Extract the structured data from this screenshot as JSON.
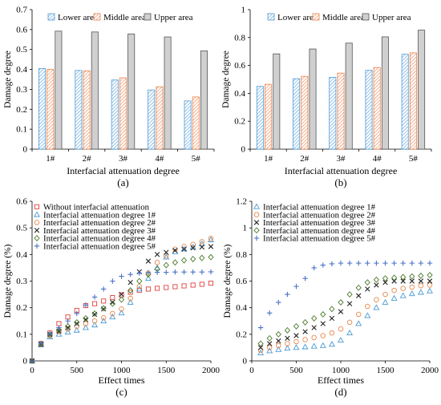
{
  "chart_data": [
    {
      "panel_label": "(a)",
      "type": "bar",
      "xlabel": "Interfacial attenuation degree",
      "ylabel": "Damage degree",
      "categories": [
        "1#",
        "2#",
        "3#",
        "4#",
        "5#"
      ],
      "ylim": [
        0,
        0.7
      ],
      "yticks": [
        "0",
        "0.1",
        "0.2",
        "0.3",
        "0.4",
        "0.5",
        "0.6",
        "0.7"
      ],
      "legend_position": "top",
      "grid": false,
      "series": [
        {
          "name": "Lower area",
          "color": "#4f9ad6",
          "pattern": "hatch-blue",
          "values": [
            0.405,
            0.395,
            0.347,
            0.297,
            0.242
          ]
        },
        {
          "name": "Middle area",
          "color": "#e8804a",
          "pattern": "hatch-orange",
          "values": [
            0.4,
            0.393,
            0.358,
            0.313,
            0.262
          ]
        },
        {
          "name": "Upper area",
          "color": "#555555",
          "pattern": "fill-gray",
          "values": [
            0.592,
            0.588,
            0.578,
            0.563,
            0.493
          ]
        }
      ]
    },
    {
      "panel_label": "(b)",
      "type": "bar",
      "xlabel": "Interfacial attenuation degree",
      "ylabel": "Damage degree",
      "categories": [
        "1#",
        "2#",
        "3#",
        "4#",
        "5#"
      ],
      "ylim": [
        0,
        1
      ],
      "yticks": [
        "0",
        "0.2",
        "0.4",
        "0.6",
        "0.8",
        "1"
      ],
      "legend_position": "top",
      "grid": false,
      "series": [
        {
          "name": "Lower area",
          "color": "#4f9ad6",
          "pattern": "hatch-blue",
          "values": [
            0.45,
            0.505,
            0.515,
            0.565,
            0.68
          ]
        },
        {
          "name": "Middle area",
          "color": "#e8804a",
          "pattern": "hatch-orange",
          "values": [
            0.465,
            0.522,
            0.545,
            0.585,
            0.69
          ]
        },
        {
          "name": "Upper area",
          "color": "#555555",
          "pattern": "fill-gray",
          "values": [
            0.683,
            0.718,
            0.76,
            0.805,
            0.853
          ]
        }
      ]
    },
    {
      "panel_label": "(c)",
      "type": "scatter",
      "xlabel": "Effect times",
      "ylabel": "Damage degree (%)",
      "xlim": [
        0,
        2000
      ],
      "ylim": [
        0,
        0.6
      ],
      "xticks": [
        "0",
        "500",
        "1000",
        "1500",
        "2000"
      ],
      "yticks": [
        "0",
        "0.1",
        "0.2",
        "0.3",
        "0.4",
        "0.5",
        "0.6"
      ],
      "legend_position": "top-left",
      "grid": false,
      "x": [
        0,
        100,
        200,
        300,
        400,
        500,
        600,
        700,
        800,
        900,
        1000,
        1100,
        1200,
        1300,
        1400,
        1500,
        1600,
        1700,
        1800,
        1900,
        2000
      ],
      "series": [
        {
          "name": "Without interfacial attenuation",
          "marker": "square",
          "color": "#e0403a",
          "values": [
            0,
            0.065,
            0.105,
            0.14,
            0.165,
            0.19,
            0.208,
            0.215,
            0.225,
            0.238,
            0.248,
            0.258,
            0.265,
            0.27,
            0.273,
            0.276,
            0.279,
            0.282,
            0.285,
            0.288,
            0.292
          ]
        },
        {
          "name": "Interfacial attenuation degree 1#",
          "marker": "triangle",
          "color": "#4a9ad4",
          "values": [
            0,
            0.06,
            0.09,
            0.1,
            0.108,
            0.115,
            0.125,
            0.135,
            0.15,
            0.165,
            0.18,
            0.22,
            0.27,
            0.31,
            0.35,
            0.39,
            0.41,
            0.42,
            0.428,
            0.44,
            0.455
          ]
        },
        {
          "name": "Interfacial attenuation degree 2#",
          "marker": "circle",
          "color": "#e8884a",
          "values": [
            0,
            0.062,
            0.095,
            0.11,
            0.12,
            0.13,
            0.14,
            0.15,
            0.162,
            0.178,
            0.195,
            0.235,
            0.28,
            0.33,
            0.37,
            0.395,
            0.42,
            0.43,
            0.438,
            0.448,
            0.46
          ]
        },
        {
          "name": "Interfacial attenuation degree 3#",
          "marker": "x",
          "color": "#222222",
          "values": [
            0,
            0.063,
            0.1,
            0.112,
            0.125,
            0.14,
            0.155,
            0.175,
            0.195,
            0.22,
            0.25,
            0.295,
            0.335,
            0.375,
            0.4,
            0.408,
            0.415,
            0.42,
            0.425,
            0.428,
            0.43
          ]
        },
        {
          "name": "Interfacial attenuation degree 4#",
          "marker": "diamond",
          "color": "#4a7a2a",
          "values": [
            0,
            0.063,
            0.098,
            0.115,
            0.13,
            0.145,
            0.16,
            0.178,
            0.198,
            0.215,
            0.23,
            0.265,
            0.3,
            0.325,
            0.345,
            0.36,
            0.37,
            0.378,
            0.383,
            0.387,
            0.39
          ]
        },
        {
          "name": "Interfacial attenuation degree 5#",
          "marker": "plus",
          "color": "#4a73c8",
          "values": [
            0,
            0.066,
            0.102,
            0.125,
            0.15,
            0.178,
            0.21,
            0.24,
            0.27,
            0.3,
            0.318,
            0.325,
            0.33,
            0.332,
            0.333,
            0.333,
            0.334,
            0.334,
            0.334,
            0.334,
            0.335
          ]
        }
      ]
    },
    {
      "panel_label": "(d)",
      "type": "scatter",
      "xlabel": "Effect times",
      "ylabel": "Damage degree (%)",
      "xlim": [
        0,
        2000
      ],
      "ylim": [
        0,
        1.2
      ],
      "xticks": [
        "0",
        "500",
        "1000",
        "1500",
        "2000"
      ],
      "yticks": [
        "0",
        "0.2",
        "0.4",
        "0.6",
        "0.8",
        "1",
        "1.2"
      ],
      "legend_position": "top-left",
      "grid": false,
      "x": [
        100,
        200,
        300,
        400,
        500,
        600,
        700,
        800,
        900,
        1000,
        1100,
        1200,
        1300,
        1400,
        1500,
        1600,
        1700,
        1800,
        1900,
        2000
      ],
      "series": [
        {
          "name": "Interfacial attenuation degree 1#",
          "marker": "triangle",
          "color": "#4a9ad4",
          "values": [
            0.06,
            0.075,
            0.085,
            0.095,
            0.1,
            0.105,
            0.11,
            0.115,
            0.125,
            0.155,
            0.21,
            0.28,
            0.34,
            0.4,
            0.44,
            0.47,
            0.49,
            0.505,
            0.515,
            0.525
          ]
        },
        {
          "name": "Interfacial attenuation degree 2#",
          "marker": "circle",
          "color": "#e8884a",
          "values": [
            0.08,
            0.1,
            0.115,
            0.13,
            0.145,
            0.16,
            0.175,
            0.19,
            0.21,
            0.24,
            0.29,
            0.35,
            0.41,
            0.46,
            0.5,
            0.53,
            0.545,
            0.555,
            0.565,
            0.57
          ]
        },
        {
          "name": "Interfacial attenuation degree 3#",
          "marker": "x",
          "color": "#222222",
          "values": [
            0.1,
            0.13,
            0.15,
            0.17,
            0.19,
            0.22,
            0.25,
            0.28,
            0.32,
            0.37,
            0.43,
            0.49,
            0.54,
            0.57,
            0.59,
            0.6,
            0.6,
            0.6,
            0.6,
            0.6
          ]
        },
        {
          "name": "Interfacial attenuation degree 4#",
          "marker": "diamond",
          "color": "#4a7a2a",
          "values": [
            0.13,
            0.17,
            0.2,
            0.23,
            0.26,
            0.29,
            0.32,
            0.35,
            0.39,
            0.44,
            0.5,
            0.55,
            0.59,
            0.61,
            0.62,
            0.625,
            0.63,
            0.635,
            0.64,
            0.645
          ]
        },
        {
          "name": "Interfacial attenuation degree 5#",
          "marker": "plus",
          "color": "#4a73c8",
          "values": [
            0.25,
            0.36,
            0.44,
            0.5,
            0.56,
            0.62,
            0.7,
            0.72,
            0.73,
            0.735,
            0.735,
            0.735,
            0.735,
            0.735,
            0.735,
            0.735,
            0.735,
            0.735,
            0.735,
            0.735
          ]
        }
      ]
    }
  ]
}
